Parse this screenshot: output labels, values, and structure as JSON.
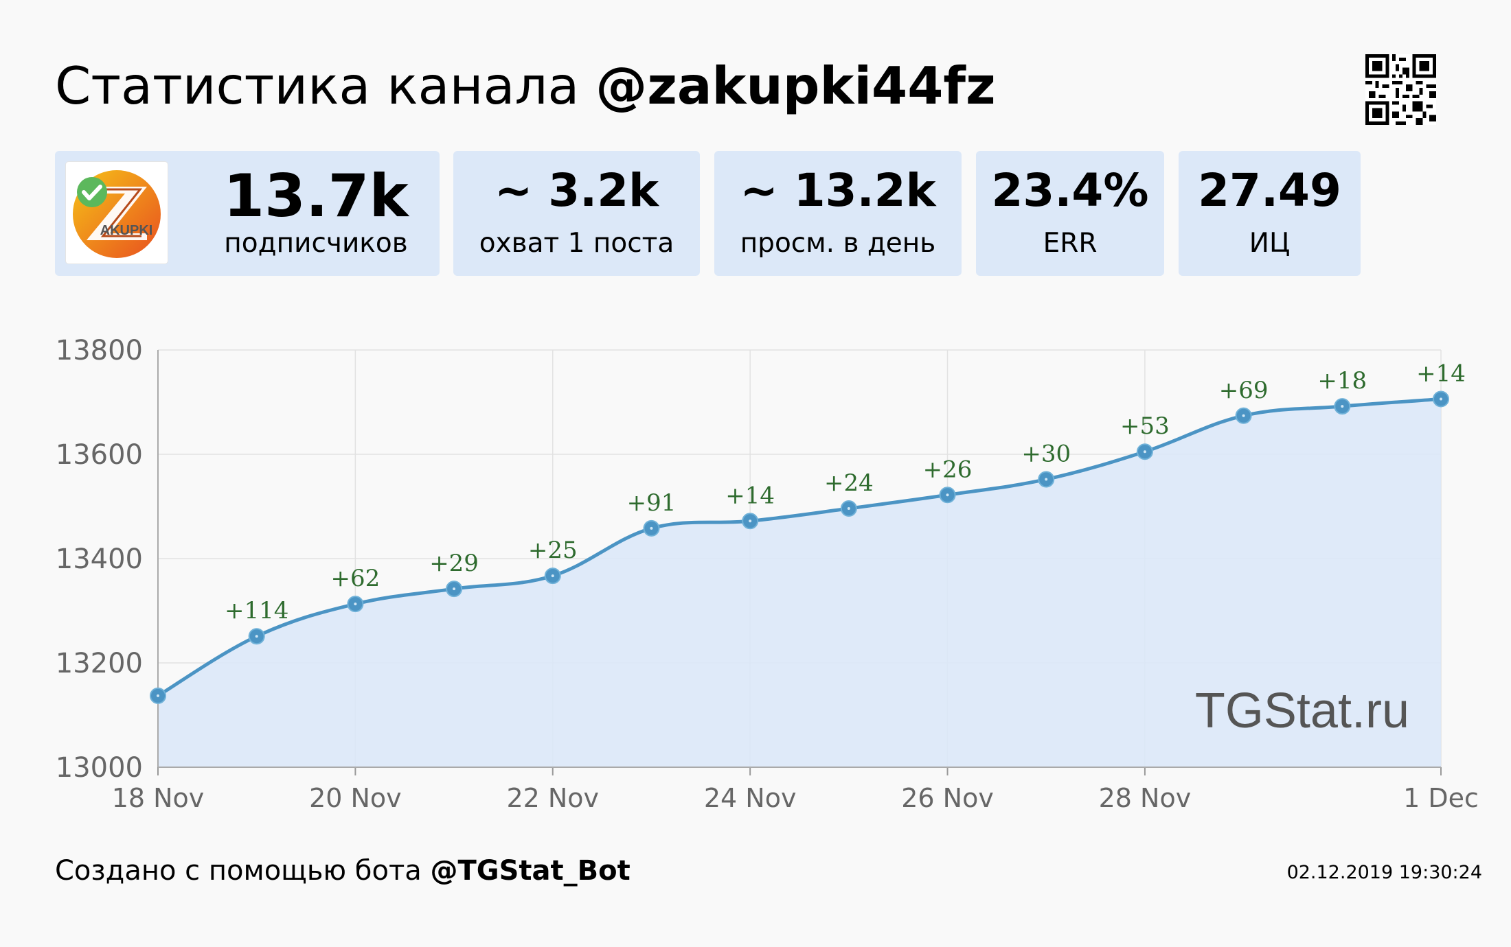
{
  "header": {
    "title_prefix": "Статистика канала",
    "channel_handle": "@zakupki44fz"
  },
  "avatar": {
    "text": "AKUPKI",
    "icon": "verified-check-icon"
  },
  "stats": [
    {
      "value": "13.7k",
      "label": "подписчиков"
    },
    {
      "value": "~ 3.2k",
      "label": "охват 1 поста"
    },
    {
      "value": "~ 13.2k",
      "label": "просм. в день"
    },
    {
      "value": "23.4%",
      "label": "ERR"
    },
    {
      "value": "27.49",
      "label": "ИЦ"
    }
  ],
  "footer": {
    "created_by": "Создано с помощью бота",
    "bot_handle": "@TGStat_Bot",
    "timestamp": "02.12.2019 19:30:24"
  },
  "chart_data": {
    "type": "area",
    "x": [
      "18 Nov",
      "19 Nov",
      "20 Nov",
      "21 Nov",
      "22 Nov",
      "23 Nov",
      "24 Nov",
      "25 Nov",
      "26 Nov",
      "27 Nov",
      "28 Nov",
      "29 Nov",
      "30 Nov",
      "1 Dec"
    ],
    "x_ticks": [
      "18 Nov",
      "20 Nov",
      "22 Nov",
      "24 Nov",
      "26 Nov",
      "28 Nov",
      "1 Dec"
    ],
    "series": [
      {
        "values": [
          13137,
          13251,
          13313,
          13342,
          13367,
          13458,
          13472,
          13496,
          13522,
          13552,
          13605,
          13674,
          13692,
          13706
        ],
        "deltas": [
          "",
          "+114",
          "+62",
          "+29",
          "+25",
          "+91",
          "+14",
          "+24",
          "+26",
          "+30",
          "+53",
          "+69",
          "+18",
          "+14"
        ]
      }
    ],
    "ylim": [
      13000,
      13800
    ],
    "y_ticks": [
      13000,
      13200,
      13400,
      13600,
      13800
    ],
    "grid": true,
    "watermark": "TGStat.ru",
    "colors": {
      "line": "#4b94c4",
      "fill": "#dce8f8",
      "delta": "#2e6b2e",
      "marker": "#4b94c4"
    }
  }
}
